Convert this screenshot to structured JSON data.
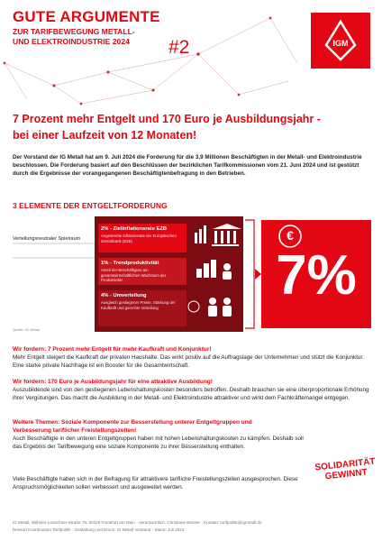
{
  "header": {
    "title": "GUTE ARGUMENTE",
    "subtitle_1": "ZUR TARIFBEWEGUNG METALL-",
    "subtitle_2": "UND ELEKTROINDUSTRIE 2024",
    "number": "#2",
    "logo": "IGM"
  },
  "headline": {
    "line_1": "7 Prozent mehr Entgelt und 170 Euro je Ausbildungsjahr -",
    "line_2": "bei einer Laufzeit von 12 Monaten!"
  },
  "intro": "Der Vorstand der IG Metall hat am 9. Juli 2024 die Forderung für die 3,9 Millionen Beschäftigten in der Metall- und Elektroindustrie beschlossen. Die Forderung basiert auf den Beschlüssen der bezirklichen Tarifkommissionen vom 21. Juni 2024 und ist gestützt durch die Ergebnisse der vorangegangenen Beschäftigtenbefragung in den Betrieben.",
  "diagram": {
    "heading": "3 ELEMENTE DER ENTGELTFORDERUNG",
    "side_label": "Verteilungsneutraler Spielraum",
    "elements": [
      {
        "title": "2% - Zielinflationsrate EZB",
        "text": "Angestrebte Inflationsrate der Europäischen Zentralbank (EZB)"
      },
      {
        "title": "1% - Trendproduktivität",
        "text": "Anteil der Beschäftigten am gesamtwirtschaftlichen Wachstum der Produktivität"
      },
      {
        "title": "4% - Umverteilung",
        "text": "Ausgleich gestiegener Preise, Stärkung der Kaufkraft und gerechte Verteilung"
      }
    ],
    "result": "7%",
    "euro": "€",
    "source": "Quelle: IG Metall"
  },
  "sections": [
    {
      "heading": "Wir fordern: 7 Prozent mehr Entgelt für mehr Kaufkraft und Konjunktur!",
      "body": "Mehr Entgelt steigert die Kaufkraft der privaten Haushalte. Das wirkt positiv auf die Auftragslage der Unternehmen und stützt die Konjunktur. Eine starke private Nachfrage ist ein Booster für die Gesamtwirtschaft."
    },
    {
      "heading": "Wir fordern: 170 Euro je Ausbildungsjahr für eine attraktive Ausbildung!",
      "body": "Auszubildende sind von den gestiegenen Lebenshaltungskosten besonders betroffen. Deshalb brauchen sie eine überproportionale Erhöhung ihrer Vergütungen. Das macht die Ausbildung in der Metall- und Elektroindustrie attraktiver und wirkt dem Fachkräftemangel entgegen."
    },
    {
      "heading": "Weitere Themen: Soziale Komponente zur Besserstellung unterer Entgeltgruppen und Verbesserung tariflicher Freistellungszeiten!",
      "body": "Auch Beschäftigte in den unteren Entgeltgruppen haben mit hohen Lebenshaltungskosten zu kämpfen. Deshalb soll das Ergebnis der Tarifbewegung eine soziale Komponente zu ihrer Besserstellung enthalten."
    }
  ],
  "closing": "Viele Beschäftigte haben sich in der Befragung für attraktivere tarifliche Freistellungszeiten ausgesprochen. Diese Anspruchsmöglichkeiten sollen verbessert und ausgeweitet werden.",
  "stamp": {
    "line_1": "SOLIDARITÄT",
    "line_2": "GEWINNT"
  },
  "footer": {
    "line_1": "IG Metall, Wilhelm-Leuschner-Straße 79, 60329 Frankfurt am Main · Verantwortlich: Christiane Benner · Kontakt: tarifpolitik@igmetall.de",
    "line_2": "Ressort Koordination Tarifpolitik · Gestaltung und Druck: IG Metall Vorstand · Stand: Juli 2024"
  }
}
